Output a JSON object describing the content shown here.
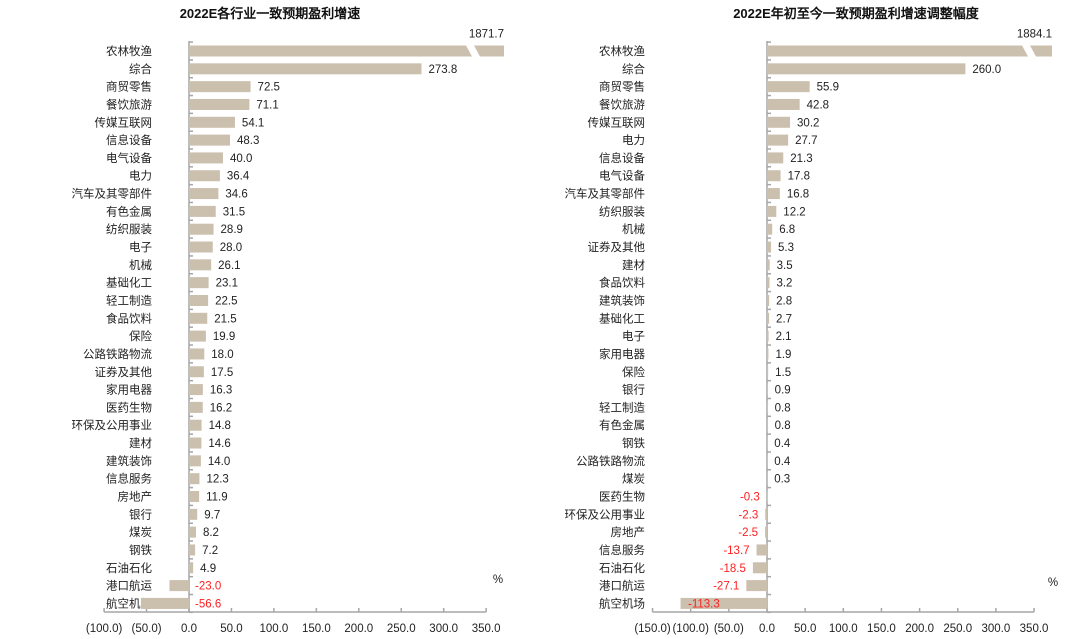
{
  "chart_data": [
    {
      "type": "bar",
      "orientation": "horizontal",
      "title": "2022E各行业一致预期盈利增速",
      "unit_label": "%",
      "xlim": [
        -100,
        350
      ],
      "xticks": [
        -100,
        -50,
        0,
        50,
        100,
        150,
        200,
        250,
        300,
        350
      ],
      "xtick_labels": [
        "(100.0)",
        "(50.0)",
        "0.0",
        "50.0",
        "100.0",
        "150.0",
        "200.0",
        "250.0",
        "300.0",
        "350.0"
      ],
      "broken_axis_value": 1871.7,
      "categories": [
        "农林牧渔",
        "综合",
        "商贸零售",
        "餐饮旅游",
        "传媒互联网",
        "信息设备",
        "电气设备",
        "电力",
        "汽车及其零部件",
        "有色金属",
        "纺织服装",
        "电子",
        "机械",
        "基础化工",
        "轻工制造",
        "食品饮料",
        "保险",
        "公路铁路物流",
        "证券及其他",
        "家用电器",
        "医药生物",
        "环保及公用事业",
        "建材",
        "建筑装饰",
        "信息服务",
        "房地产",
        "银行",
        "煤炭",
        "钢铁",
        "石油石化",
        "港口航运",
        "航空机场"
      ],
      "values": [
        1871.7,
        273.8,
        72.5,
        71.1,
        54.1,
        48.3,
        40.0,
        36.4,
        34.6,
        31.5,
        28.9,
        28.0,
        26.1,
        23.1,
        22.5,
        21.5,
        19.9,
        18.0,
        17.5,
        16.3,
        16.2,
        14.8,
        14.6,
        14.0,
        12.3,
        11.9,
        9.7,
        8.2,
        7.2,
        4.9,
        -23.0,
        -56.6
      ],
      "value_labels": [
        "1871.7",
        "273.8",
        "72.5",
        "71.1",
        "54.1",
        "48.3",
        "40.0",
        "36.4",
        "34.6",
        "31.5",
        "28.9",
        "28.0",
        "26.1",
        "23.1",
        "22.5",
        "21.5",
        "19.9",
        "18.0",
        "17.5",
        "16.3",
        "16.2",
        "14.8",
        "14.6",
        "14.0",
        "12.3",
        "11.9",
        "9.7",
        "8.2",
        "7.2",
        "4.9",
        "-23.0",
        "-56.6"
      ],
      "bar_color": "#cbbfad",
      "negative_label_color": "#ff2020"
    },
    {
      "type": "bar",
      "orientation": "horizontal",
      "title": "2022E年初至今一致预期盈利增速调整幅度",
      "unit_label": "%",
      "xlim": [
        -150,
        350
      ],
      "xticks": [
        -150,
        -100,
        -50,
        0,
        50,
        100,
        150,
        200,
        250,
        300,
        350
      ],
      "xtick_labels": [
        "(150.0)",
        "(100.0)",
        "(50.0)",
        "0.0",
        "50.0",
        "100.0",
        "150.0",
        "200.0",
        "250.0",
        "300.0",
        "350.0"
      ],
      "broken_axis_value": 1884.1,
      "categories": [
        "农林牧渔",
        "综合",
        "商贸零售",
        "餐饮旅游",
        "传媒互联网",
        "电力",
        "信息设备",
        "电气设备",
        "汽车及其零部件",
        "纺织服装",
        "机械",
        "证券及其他",
        "建材",
        "食品饮料",
        "建筑装饰",
        "基础化工",
        "电子",
        "家用电器",
        "保险",
        "银行",
        "轻工制造",
        "有色金属",
        "钢铁",
        "公路铁路物流",
        "煤炭",
        "医药生物",
        "环保及公用事业",
        "房地产",
        "信息服务",
        "石油石化",
        "港口航运",
        "航空机场"
      ],
      "values": [
        1884.1,
        260.0,
        55.9,
        42.8,
        30.2,
        27.7,
        21.3,
        17.8,
        16.8,
        12.2,
        6.8,
        5.3,
        3.5,
        3.2,
        2.8,
        2.7,
        2.1,
        1.9,
        1.5,
        0.9,
        0.8,
        0.8,
        0.4,
        0.4,
        0.3,
        -0.3,
        -2.3,
        -2.5,
        -13.7,
        -18.5,
        -27.1,
        -113.3
      ],
      "value_labels": [
        "1884.1",
        "260.0",
        "55.9",
        "42.8",
        "30.2",
        "27.7",
        "21.3",
        "17.8",
        "16.8",
        "12.2",
        "6.8",
        "5.3",
        "3.5",
        "3.2",
        "2.8",
        "2.7",
        "2.1",
        "1.9",
        "1.5",
        "0.9",
        "0.8",
        "0.8",
        "0.4",
        "0.4",
        "0.3",
        "-0.3",
        "-2.3",
        "-2.5",
        "-13.7",
        "-18.5",
        "-27.1",
        "-113.3"
      ],
      "bar_color": "#cbbfad",
      "negative_label_color": "#ff2020"
    }
  ]
}
